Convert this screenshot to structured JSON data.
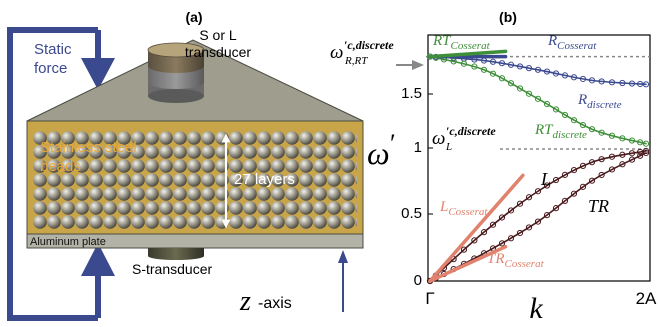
{
  "panel_a": {
    "label": "(a)",
    "static_force": [
      "Static",
      "force"
    ],
    "top_transducer": [
      "S or L",
      "transducer"
    ],
    "beads": [
      "Stainless steel",
      "beads"
    ],
    "layers": "27 layers",
    "plate": "Aluminum plate",
    "bottom_transducer": "S-transducer",
    "axis_label": "z",
    "axis_suffix": "-axis"
  },
  "panel_b": {
    "label": "(b)",
    "y_axis_symbol": "ω",
    "y_axis_prime": "′",
    "x_axis_symbol": "k",
    "x_ticks": [
      "Γ",
      "2A"
    ],
    "y_ticks": [
      "0",
      "0.5",
      "1",
      "1.5"
    ],
    "labels": {
      "rt_cosserat": {
        "main": "RT",
        "sub": "Cosserat"
      },
      "r_cosserat": {
        "main": "R",
        "sub": "Cosserat"
      },
      "r_discrete": {
        "main": "R",
        "sub": "discrete"
      },
      "rt_discrete": {
        "main": "RT",
        "sub": "discrete"
      },
      "omega_rrt": {
        "main": "ω",
        "sup": "′c,discrete",
        "sub": "R,RT"
      },
      "omega_l": {
        "main": "ω",
        "sup": "′c,discrete",
        "sub": "L"
      },
      "l": {
        "main": "L"
      },
      "tr": {
        "main": "TR"
      },
      "l_cosserat": {
        "main": "L",
        "sub": "Cosserat"
      },
      "tr_cosserat": {
        "main": "TR",
        "sub": "Cosserat"
      }
    },
    "colors": {
      "blue": "#3b4a8f",
      "green": "#3f8f3a",
      "dark_red": "#4a1a1e",
      "salmon": "#e0826d",
      "grey": "#888888"
    }
  },
  "chart_data": {
    "type": "line",
    "xlabel": "k",
    "ylabel": "ω′",
    "x_range": [
      "Γ",
      "2A"
    ],
    "ylim": [
      0,
      1.85
    ],
    "reference_lines": [
      {
        "name": "ω′c,discrete R,RT",
        "y": 1.7
      },
      {
        "name": "ω′c,discrete L",
        "y": 1.0
      }
    ],
    "series": [
      {
        "name": "R discrete",
        "x": [
          0,
          0.25,
          0.5,
          0.75,
          1.0
        ],
        "y": [
          1.7,
          1.67,
          1.6,
          1.52,
          1.49
        ]
      },
      {
        "name": "RT discrete",
        "x": [
          0,
          0.25,
          0.5,
          0.75,
          1.0
        ],
        "y": [
          1.7,
          1.6,
          1.38,
          1.15,
          1.04
        ]
      },
      {
        "name": "L",
        "x": [
          0,
          0.25,
          0.5,
          0.75,
          1.0
        ],
        "y": [
          0,
          0.37,
          0.68,
          0.9,
          0.985
        ]
      },
      {
        "name": "TR",
        "x": [
          0,
          0.25,
          0.5,
          0.75,
          1.0
        ],
        "y": [
          0,
          0.21,
          0.45,
          0.76,
          0.97
        ]
      },
      {
        "name": "R Cosserat",
        "x": [
          0,
          0.35
        ],
        "y": [
          1.7,
          1.7
        ]
      },
      {
        "name": "RT Cosserat",
        "x": [
          0,
          0.35
        ],
        "y": [
          1.7,
          1.74
        ]
      },
      {
        "name": "L Cosserat",
        "x": [
          0,
          0.43
        ],
        "y": [
          0,
          0.8
        ]
      },
      {
        "name": "TR Cosserat",
        "x": [
          0,
          0.35
        ],
        "y": [
          0,
          0.26
        ]
      }
    ]
  }
}
